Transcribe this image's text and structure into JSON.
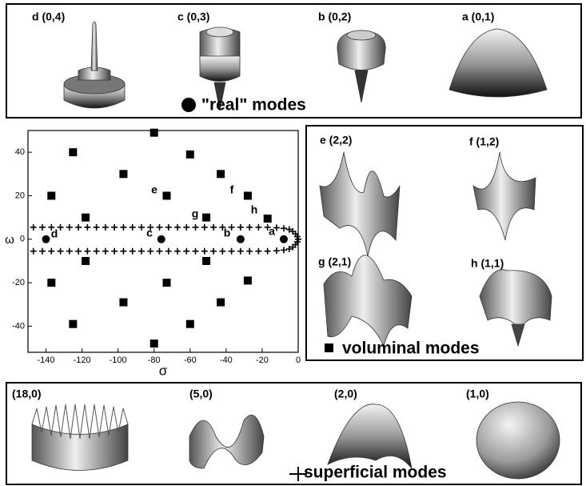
{
  "chart_data": {
    "type": "scatter",
    "xlabel": "σ",
    "ylabel": "ω",
    "xlim": [
      -150,
      0
    ],
    "ylim": [
      -52,
      50
    ],
    "xticks": [
      -140,
      -120,
      -100,
      -80,
      -60,
      -40,
      -20,
      0
    ],
    "yticks": [
      -40,
      -20,
      0,
      20,
      40
    ],
    "annotations": [
      "d",
      "c",
      "b",
      "a",
      "e",
      "f",
      "g",
      "h"
    ],
    "series": [
      {
        "name": "\"real\" modes",
        "marker": "circle",
        "color": "#000",
        "x": [
          -140,
          -76,
          -32,
          -8
        ],
        "y": [
          0,
          0,
          0,
          0
        ]
      },
      {
        "name": "voluminal modes",
        "marker": "square",
        "color": "#000",
        "x": [
          -80,
          -125,
          -60,
          -97,
          -43,
          -137,
          -73,
          -28,
          -118,
          -51,
          -17,
          -118,
          -51,
          -137,
          -73,
          -28,
          -97,
          -43,
          -125,
          -60,
          -80
        ],
        "y": [
          49,
          40,
          39,
          30,
          30,
          20,
          20,
          20,
          10,
          10,
          9.5,
          -10,
          -10,
          -20,
          -20,
          -19,
          -29,
          -29,
          -39,
          -39,
          -48
        ]
      },
      {
        "name": "superficial modes",
        "marker": "plus",
        "color": "#000",
        "x": [
          -147,
          -142,
          -137,
          -132,
          -127,
          -122,
          -117,
          -112,
          -107,
          -102,
          -97,
          -92,
          -87,
          -82,
          -77,
          -72,
          -67,
          -62,
          -57,
          -52,
          -47,
          -42,
          -37,
          -32,
          -27,
          -22,
          -17,
          -12,
          -8,
          -5,
          -3,
          -1.5,
          -0.5,
          0,
          -0.5,
          -1.5,
          -3,
          -5,
          -8,
          -12,
          -17,
          -22,
          -27,
          -32,
          -37,
          -42,
          -47,
          -52,
          -57,
          -62,
          -67,
          -72,
          -77,
          -82,
          -87,
          -92,
          -97,
          -102,
          -107,
          -112,
          -117,
          -122,
          -127,
          -132,
          -137,
          -142,
          -147
        ],
        "y": [
          5.5,
          5.5,
          5.5,
          5.5,
          5.5,
          5.5,
          5.5,
          5.5,
          5.5,
          5.5,
          5.5,
          5.5,
          5.5,
          5.5,
          5.5,
          5.5,
          5.5,
          5.5,
          5.5,
          5.5,
          5.5,
          5.5,
          5.5,
          5.5,
          5.5,
          5.5,
          5.5,
          5.3,
          5.0,
          4.5,
          3.6,
          2.5,
          1.2,
          0,
          -1.2,
          -2.5,
          -3.6,
          -4.5,
          -5.0,
          -5.3,
          -5.5,
          -5.5,
          -5.5,
          -5.5,
          -5.5,
          -5.5,
          -5.5,
          -5.5,
          -5.5,
          -5.5,
          -5.5,
          -5.5,
          -5.5,
          -5.5,
          -5.5,
          -5.5,
          -5.5,
          -5.5,
          -5.5,
          -5.5,
          -5.5,
          -5.5,
          -5.5,
          -5.5,
          -5.5,
          -5.5,
          -5.5
        ]
      }
    ]
  },
  "panels": {
    "real": [
      "d (0,4)",
      "c (0,3)",
      "b (0,2)",
      "a (0,1)"
    ],
    "voluminal": [
      "e (2,2)",
      "f (1,2)",
      "g (2,1)",
      "h (1,1)"
    ],
    "superficial": [
      "(18,0)",
      "(5,0)",
      "(2,0)",
      "(1,0)"
    ]
  }
}
